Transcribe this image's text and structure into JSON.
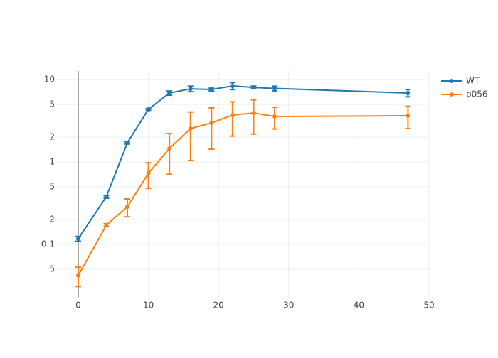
{
  "chart_data": {
    "type": "line",
    "x": [
      0,
      4,
      7,
      10,
      13,
      16,
      19,
      22,
      25,
      28,
      47
    ],
    "series": [
      {
        "name": "WT",
        "color": "#1f77b4",
        "values": [
          0.117,
          0.378,
          1.71,
          4.34,
          6.86,
          7.72,
          7.57,
          8.36,
          8.03,
          7.8,
          6.86
        ],
        "errors": [
          0.008,
          0.015,
          0.06,
          0.1,
          0.4,
          0.6,
          0.3,
          0.8,
          0.3,
          0.5,
          0.7
        ]
      },
      {
        "name": "p056",
        "color": "#ff7f0e",
        "values": [
          0.0418,
          0.171,
          0.286,
          0.728,
          1.46,
          2.54,
          2.98,
          3.71,
          3.93,
          3.56,
          3.64
        ],
        "errors": [
          0.011,
          0.007,
          0.07,
          0.25,
          0.75,
          1.5,
          1.55,
          1.65,
          1.75,
          1.05,
          1.1
        ]
      }
    ],
    "xlim": [
      -3.04,
      50
    ],
    "xticks": [
      0,
      10,
      20,
      30,
      40,
      50
    ],
    "ylim": [
      0.0221,
      12.7
    ],
    "log_y": true,
    "yticks": [
      {
        "value": 0.05,
        "label": "5"
      },
      0.1,
      {
        "value": 0.2,
        "label": "2"
      },
      {
        "value": 0.5,
        "label": "5"
      },
      1,
      2,
      5,
      10
    ],
    "grid": true,
    "legend": "top-right"
  }
}
